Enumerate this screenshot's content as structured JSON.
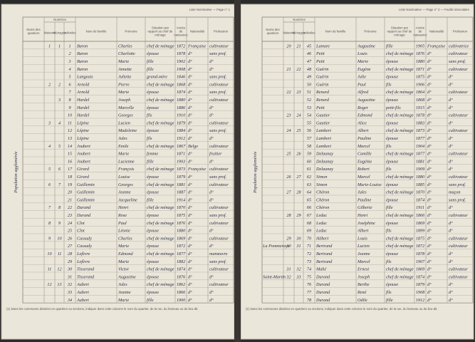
{
  "pages": [
    {
      "header": "Liste Nominative — Page n° 1",
      "section": "Population agglomérée",
      "group_header": "Numéros",
      "columns": [
        "Noms des quartiers",
        "Maisons",
        "Ménages",
        "Individus",
        "Nom de famille",
        "Prénoms",
        "Situation par rapport au chef de ménage",
        "Année de naissance",
        "Nationalité",
        "Profession"
      ],
      "rows": [
        [
          null,
          "1",
          "1",
          "1",
          "Baron",
          "Charles",
          "chef de ménage",
          "1872",
          "Française",
          "cultivateur"
        ],
        [
          null,
          null,
          null,
          "2",
          "Baron",
          "Charlotte",
          "épouse",
          "1878",
          "d°",
          "sans prof."
        ],
        [
          null,
          null,
          null,
          "3",
          "Baron",
          "Marie",
          "fille",
          "1902",
          "d°",
          "d°"
        ],
        [
          null,
          null,
          null,
          "4",
          "Baron",
          "Annette",
          "fille",
          "1908",
          "d°",
          "d°"
        ],
        [
          null,
          null,
          null,
          "5",
          "Langeais",
          "Juliette",
          "grand-mère",
          "1846",
          "d°",
          "sans prof."
        ],
        [
          null,
          "2",
          "2",
          "6",
          "Arnold",
          "Pierre",
          "chef de ménage",
          "1868",
          "d°",
          "cultivateur"
        ],
        [
          null,
          null,
          null,
          "7",
          "Arnold",
          "Marie",
          "épouse",
          "1874",
          "d°",
          "sans prof."
        ],
        [
          null,
          null,
          "3",
          "8",
          "Hardel",
          "Joseph",
          "chef de ménage",
          "1880",
          "d°",
          "cultivateur"
        ],
        [
          null,
          null,
          null,
          "9",
          "Hardel",
          "Marcelle",
          "épouse",
          "1886",
          "d°",
          "d°"
        ],
        [
          null,
          null,
          null,
          "10",
          "Hardel",
          "Georges",
          "fils",
          "1910",
          "d°",
          "d°"
        ],
        [
          null,
          "3",
          "4",
          "11",
          "Lépine",
          "Lucien",
          "chef de ménage",
          "1879",
          "d°",
          "cultivateur"
        ],
        [
          null,
          null,
          null,
          "12",
          "Lépine",
          "Madeleine",
          "épouse",
          "1884",
          "d°",
          "sans prof."
        ],
        [
          null,
          null,
          null,
          "13",
          "Lépine",
          "Jules",
          "fils",
          "1912",
          "d°",
          "d°"
        ],
        [
          null,
          "4",
          "5",
          "14",
          "Joubert",
          "Emile",
          "chef de ménage",
          "1867",
          "Belge",
          "cultivateur"
        ],
        [
          null,
          null,
          null,
          "15",
          "Joubert",
          "Marie",
          "femme",
          "1871",
          "d°",
          "fruitier"
        ],
        [
          null,
          null,
          null,
          "16",
          "Joubert",
          "Lucienne",
          "fille",
          "1903",
          "d°",
          "d°"
        ],
        [
          null,
          "5",
          "6",
          "17",
          "Girard",
          "François",
          "chef de ménage",
          "1873",
          "Française",
          "cultivateur"
        ],
        [
          null,
          null,
          null,
          "18",
          "Girard",
          "Louise",
          "épouse",
          "1879",
          "d°",
          "sans prof."
        ],
        [
          null,
          "6",
          "7",
          "19",
          "Guillemin",
          "Georges",
          "chef de ménage",
          "1881",
          "d°",
          "cultivateur"
        ],
        [
          null,
          null,
          null,
          "20",
          "Guillemin",
          "Jeanne",
          "épouse",
          "1887",
          "d°",
          "d°"
        ],
        [
          null,
          null,
          null,
          "21",
          "Guillemin",
          "Jacqueline",
          "fille",
          "1914",
          "d°",
          "d°"
        ],
        [
          null,
          "7",
          "8",
          "22",
          "Durand",
          "Henri",
          "chef de ménage",
          "1870",
          "d°",
          "cultivateur"
        ],
        [
          null,
          null,
          null,
          "23",
          "Durand",
          "Rose",
          "épouse",
          "1875",
          "d°",
          "sans prof."
        ],
        [
          null,
          "8",
          "9",
          "24",
          "Clot",
          "Paul",
          "chef de ménage",
          "1876",
          "d°",
          "cultivateur"
        ],
        [
          null,
          null,
          null,
          "25",
          "Clot",
          "Léonie",
          "épouse",
          "1880",
          "d°",
          "d°"
        ],
        [
          null,
          "9",
          "10",
          "26",
          "Cassady",
          "Charles",
          "chef de ménage",
          "1869",
          "d°",
          "cultivateur"
        ],
        [
          null,
          null,
          null,
          "27",
          "Cassady",
          "Marie",
          "épouse",
          "1872",
          "d°",
          "d°"
        ],
        [
          null,
          "10",
          "11",
          "28",
          "Lefèvre",
          "Edmond",
          "chef de ménage",
          "1877",
          "d°",
          "manœuvre"
        ],
        [
          null,
          null,
          null,
          "29",
          "Lefèvre",
          "Marie",
          "épouse",
          "1882",
          "d°",
          "sans prof."
        ],
        [
          null,
          "11",
          "12",
          "30",
          "Tisserand",
          "Victor",
          "chef de ménage",
          "1874",
          "d°",
          "cultivateur"
        ],
        [
          null,
          null,
          null,
          "31",
          "Tisserand",
          "Augustine",
          "épouse",
          "1876",
          "d°",
          "d°"
        ],
        [
          null,
          "12",
          "13",
          "32",
          "Aubert",
          "Jules",
          "chef de ménage",
          "1862",
          "d°",
          "cultivateur"
        ],
        [
          null,
          null,
          null,
          "33",
          "Aubert",
          "Jeanne",
          "épouse",
          "1866",
          "d°",
          "d°"
        ],
        [
          null,
          null,
          null,
          "34",
          "Aubert",
          "Marie",
          "fille",
          "1900",
          "d°",
          "d°"
        ]
      ],
      "footer": "(1) Dans les communes divisées en quartiers ou sections, indiquer dans cette colonne le nom du quartier, de la rue, du hameau ou du lieu-dit."
    },
    {
      "header": "Liste Nominative — Page n° 2 — Feuille intercalaire",
      "section": "Population agglomérée",
      "group_header": "Numéros",
      "columns": [
        "Noms des quartiers",
        "Maisons",
        "Ménages",
        "Individus",
        "Nom de famille",
        "Prénoms",
        "Situation par rapport au chef de ménage",
        "Année de naissance",
        "Nationalité",
        "Profession"
      ],
      "rows": [
        [
          null,
          "20",
          "21",
          "45",
          "Lamare",
          "Augustine",
          "fille",
          "1905",
          "Française",
          "cultivatrice"
        ],
        [
          null,
          null,
          null,
          "46",
          "Petit",
          "Louis",
          "chef de ménage",
          "1876",
          "d°",
          "cultivateur"
        ],
        [
          null,
          null,
          null,
          "47",
          "Petit",
          "Marie",
          "épouse",
          "1880",
          "d°",
          "sans prof."
        ],
        [
          null,
          "21",
          "22",
          "48",
          "Guérin",
          "Eugène",
          "chef de ménage",
          "1871",
          "d°",
          "cultivateur"
        ],
        [
          null,
          null,
          null,
          "49",
          "Guérin",
          "Julie",
          "épouse",
          "1875",
          "d°",
          "d°"
        ],
        [
          null,
          null,
          null,
          "50",
          "Guérin",
          "Paul",
          "fils",
          "1906",
          "d°",
          "d°"
        ],
        [
          null,
          "22",
          "23",
          "51",
          "Renard",
          "Alfred",
          "chef de ménage",
          "1864",
          "d°",
          "cultivateur"
        ],
        [
          null,
          null,
          null,
          "52",
          "Renard",
          "Augustine",
          "épouse",
          "1868",
          "d°",
          "d°"
        ],
        [
          null,
          null,
          null,
          "53",
          "Petit",
          "Roger",
          "petit-fils",
          "1915",
          "d°",
          "d°"
        ],
        [
          null,
          "23",
          "24",
          "54",
          "Gautier",
          "Edmond",
          "chef de ménage",
          "1878",
          "d°",
          "cultivateur"
        ],
        [
          null,
          null,
          null,
          "55",
          "Gautier",
          "Alice",
          "épouse",
          "1883",
          "d°",
          "d°"
        ],
        [
          null,
          "24",
          "25",
          "56",
          "Lambert",
          "Albert",
          "chef de ménage",
          "1873",
          "d°",
          "cultivateur"
        ],
        [
          null,
          null,
          null,
          "57",
          "Lambert",
          "Pauline",
          "épouse",
          "1877",
          "d°",
          "d°"
        ],
        [
          null,
          null,
          null,
          "58",
          "Lambert",
          "Marcel",
          "fils",
          "1904",
          "d°",
          "d°"
        ],
        [
          null,
          "25",
          "26",
          "59",
          "Delaunay",
          "Camille",
          "chef de ménage",
          "1877",
          "d°",
          "cultivateur"
        ],
        [
          null,
          null,
          null,
          "60",
          "Delaunay",
          "Eugénie",
          "épouse",
          "1881",
          "d°",
          "d°"
        ],
        [
          null,
          null,
          null,
          "61",
          "Delaunay",
          "Robert",
          "fils",
          "1909",
          "d°",
          "d°"
        ],
        [
          null,
          "26",
          "27",
          "62",
          "Simon",
          "Marcel",
          "chef de ménage",
          "1880",
          "d°",
          "cultivateur"
        ],
        [
          null,
          null,
          null,
          "63",
          "Simon",
          "Marie-Louise",
          "épouse",
          "1885",
          "d°",
          "sans prof."
        ],
        [
          null,
          "27",
          "28",
          "64",
          "Chéron",
          "Jules",
          "chef de ménage",
          "1870",
          "d°",
          "maçon"
        ],
        [
          null,
          null,
          null,
          "65",
          "Chéron",
          "Pauline",
          "épouse",
          "1874",
          "d°",
          "sans prof."
        ],
        [
          null,
          null,
          null,
          "66",
          "Chéron",
          "Gilberte",
          "fille",
          "1911",
          "d°",
          "d°"
        ],
        [
          null,
          "28",
          "29",
          "67",
          "Leduc",
          "Henri",
          "chef de ménage",
          "1866",
          "d°",
          "cultivateur"
        ],
        [
          null,
          null,
          null,
          "68",
          "Leduc",
          "Joséphine",
          "épouse",
          "1869",
          "d°",
          "d°"
        ],
        [
          null,
          null,
          null,
          "69",
          "Leduc",
          "Albert",
          "fils",
          "1899",
          "d°",
          "d°"
        ],
        [
          null,
          "29",
          "30",
          "70",
          "Hébert",
          "Louis",
          "chef de ménage",
          "1875",
          "d°",
          "cultivateur"
        ],
        [
          "La Pommeraye",
          "30",
          "31",
          "71",
          "Bertrand",
          "Lucien",
          "chef de ménage",
          "1872",
          "d°",
          "cultivateur"
        ],
        [
          null,
          null,
          null,
          "72",
          "Bertrand",
          "Jeanne",
          "épouse",
          "1878",
          "d°",
          "d°"
        ],
        [
          null,
          null,
          null,
          "73",
          "Bertrand",
          "Marcel",
          "fils",
          "1907",
          "d°",
          "d°"
        ],
        [
          null,
          "31",
          "32",
          "74",
          "Mahé",
          "Ernest",
          "chef de ménage",
          "1869",
          "d°",
          "cultivateur"
        ],
        [
          "Saint-Martin",
          "32",
          "33",
          "75",
          "Durand",
          "Joseph",
          "chef de ménage",
          "1874",
          "d°",
          "cultivateur"
        ],
        [
          null,
          null,
          null,
          "76",
          "Durand",
          "Berthe",
          "épouse",
          "1879",
          "d°",
          "d°"
        ],
        [
          null,
          null,
          null,
          "77",
          "Durand",
          "René",
          "fils",
          "1908",
          "d°",
          "d°"
        ],
        [
          null,
          null,
          null,
          "78",
          "Durand",
          "Odile",
          "fille",
          "1912",
          "d°",
          "d°"
        ]
      ],
      "footer": "(1) Dans les communes divisées en quartiers ou sections, indiquer dans cette colonne le nom du quartier, de la rue, du hameau ou du lieu-dit."
    }
  ]
}
